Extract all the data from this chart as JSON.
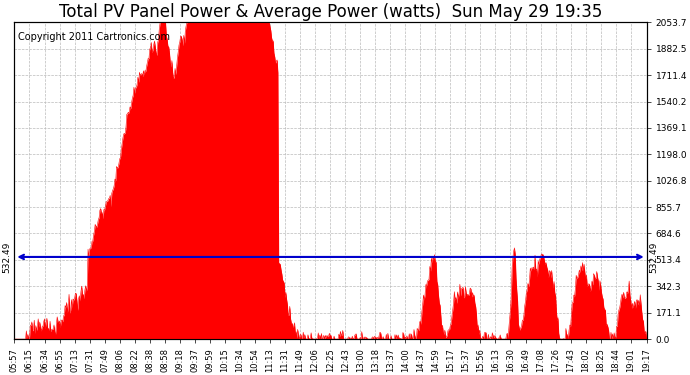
{
  "title": "Total PV Panel Power & Average Power (watts)  Sun May 29 19:35",
  "copyright": "Copyright 2011 Cartronics.com",
  "average_value": 532.49,
  "ylim": [
    0,
    2053.7
  ],
  "yticks_right": [
    0.0,
    171.1,
    342.3,
    513.4,
    684.6,
    855.7,
    1026.8,
    1198.0,
    1369.1,
    1540.2,
    1711.4,
    1882.5,
    2053.7
  ],
  "background_color": "#ffffff",
  "fill_color": "#ff0000",
  "avg_line_color": "#0000cc",
  "grid_color": "#bbbbbb",
  "title_fontsize": 12,
  "copyright_fontsize": 7,
  "tick_fontsize": 6.5,
  "x_labels": [
    "05:57",
    "06:15",
    "06:34",
    "06:55",
    "07:13",
    "07:31",
    "07:49",
    "08:06",
    "08:22",
    "08:38",
    "08:58",
    "09:18",
    "09:37",
    "09:59",
    "10:15",
    "10:34",
    "10:54",
    "11:13",
    "11:31",
    "11:49",
    "12:06",
    "12:25",
    "12:43",
    "13:00",
    "13:18",
    "13:37",
    "14:00",
    "14:37",
    "14:59",
    "15:17",
    "15:37",
    "15:56",
    "16:13",
    "16:30",
    "16:49",
    "17:08",
    "17:26",
    "17:43",
    "18:02",
    "18:25",
    "18:44",
    "19:01",
    "19:17"
  ]
}
